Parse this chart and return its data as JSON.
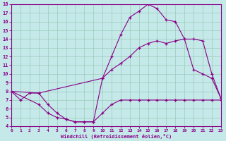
{
  "bg_color": "#c5e8e8",
  "line_color": "#880088",
  "grid_color": "#99ccbb",
  "xlabel": "Windchill (Refroidissement éolien,°C)",
  "xlim": [
    0,
    23
  ],
  "ylim": [
    4,
    18
  ],
  "xticks": [
    0,
    1,
    2,
    3,
    4,
    5,
    6,
    7,
    8,
    9,
    10,
    11,
    12,
    13,
    14,
    15,
    16,
    17,
    18,
    19,
    20,
    21,
    22,
    23
  ],
  "yticks": [
    4,
    5,
    6,
    7,
    8,
    9,
    10,
    11,
    12,
    13,
    14,
    15,
    16,
    17,
    18
  ],
  "curve1_x": [
    0,
    1,
    2,
    3,
    4,
    5,
    6,
    7,
    8,
    9,
    10,
    11,
    12,
    13,
    14,
    15,
    16,
    17,
    18,
    19,
    20,
    21,
    22,
    23
  ],
  "curve1_y": [
    8.0,
    7.0,
    7.8,
    7.8,
    6.5,
    5.5,
    4.8,
    4.5,
    4.5,
    4.5,
    9.5,
    12.0,
    14.5,
    16.5,
    17.2,
    18.0,
    17.5,
    16.2,
    16.0,
    14.0,
    10.5,
    10.0,
    9.5,
    7.2
  ],
  "curve2_x": [
    0,
    3,
    10,
    11,
    12,
    13,
    14,
    15,
    16,
    17,
    18,
    19,
    20,
    21,
    22,
    23
  ],
  "curve2_y": [
    8.0,
    7.8,
    9.5,
    10.5,
    11.2,
    12.0,
    13.0,
    13.5,
    13.8,
    13.5,
    13.8,
    14.0,
    14.0,
    13.8,
    10.0,
    7.2
  ],
  "curve3_x": [
    0,
    3,
    4,
    5,
    6,
    7,
    8,
    9,
    10,
    11,
    12,
    13,
    14,
    15,
    16,
    17,
    18,
    19,
    20,
    21,
    22,
    23
  ],
  "curve3_y": [
    8.0,
    6.5,
    5.5,
    5.0,
    4.8,
    4.5,
    4.5,
    4.5,
    5.5,
    6.5,
    7.0,
    7.0,
    7.0,
    7.0,
    7.0,
    7.0,
    7.0,
    7.0,
    7.0,
    7.0,
    7.0,
    7.0
  ]
}
